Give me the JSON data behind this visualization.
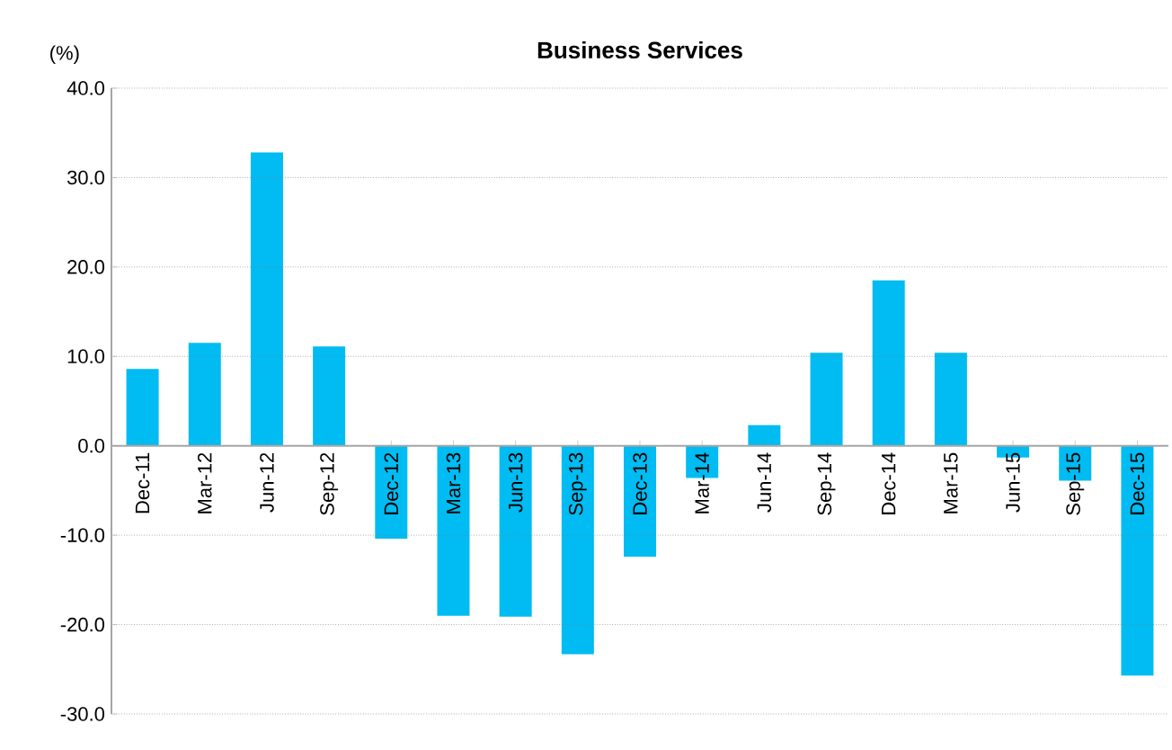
{
  "chart_data": {
    "type": "bar",
    "title": "Business Services",
    "ylabel": "(%)",
    "categories": [
      "Dec-11",
      "Mar-12",
      "Jun-12",
      "Sep-12",
      "Dec-12",
      "Mar-13",
      "Jun-13",
      "Sep-13",
      "Dec-13",
      "Mar-14",
      "Jun-14",
      "Sep-14",
      "Dec-14",
      "Mar-15",
      "Jun-15",
      "Sep-15",
      "Dec-15"
    ],
    "values": [
      8.6,
      11.5,
      32.8,
      11.1,
      -10.4,
      -19.0,
      -19.1,
      -23.3,
      -12.4,
      -3.6,
      2.3,
      10.4,
      18.5,
      10.4,
      -1.3,
      -3.9,
      -25.7
    ],
    "color": "#00bcf2",
    "ylim": [
      -30,
      40
    ],
    "yticks": [
      {
        "value": -30,
        "label": "-30.0"
      },
      {
        "value": -20,
        "label": "-20.0"
      },
      {
        "value": -10,
        "label": "-10.0"
      },
      {
        "value": 0,
        "label": "0.0"
      },
      {
        "value": 10,
        "label": "10.0"
      },
      {
        "value": 20,
        "label": "20.0"
      },
      {
        "value": 30,
        "label": "30.0"
      },
      {
        "value": 40,
        "label": "40.0"
      }
    ],
    "grid": "y"
  }
}
